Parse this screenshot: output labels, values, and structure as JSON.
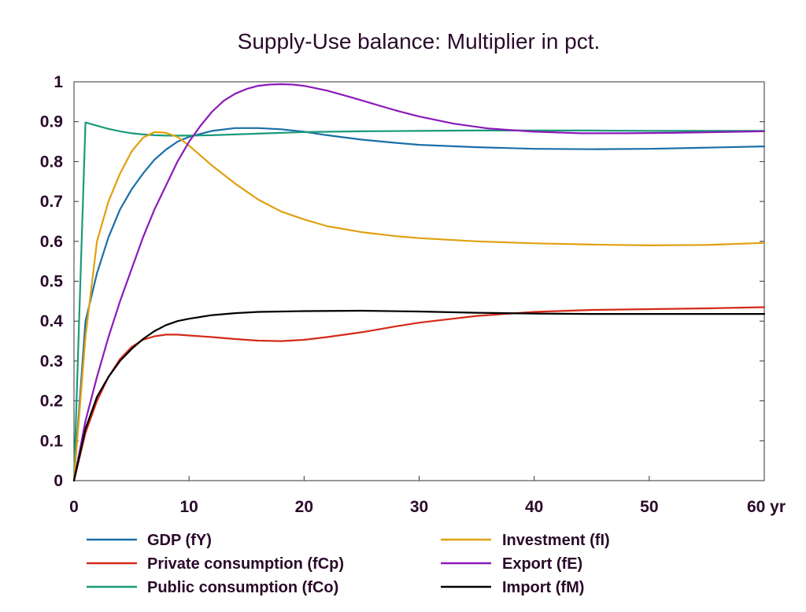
{
  "chart_data": {
    "type": "line",
    "title": "Supply-Use balance: Multiplier in pct.",
    "xlabel": "",
    "ylabel": "",
    "xlim": [
      0,
      60
    ],
    "ylim": [
      0,
      1
    ],
    "x_ticks": [
      {
        "value": 0,
        "label": "0"
      },
      {
        "value": 10,
        "label": "10"
      },
      {
        "value": 20,
        "label": "20"
      },
      {
        "value": 30,
        "label": "30"
      },
      {
        "value": 40,
        "label": "40"
      },
      {
        "value": 50,
        "label": "50"
      },
      {
        "value": 60,
        "label": "60 yr"
      }
    ],
    "y_ticks": [
      {
        "value": 0,
        "label": "0"
      },
      {
        "value": 0.1,
        "label": "0.1"
      },
      {
        "value": 0.2,
        "label": "0.2"
      },
      {
        "value": 0.3,
        "label": "0.3"
      },
      {
        "value": 0.4,
        "label": "0.4"
      },
      {
        "value": 0.5,
        "label": "0.5"
      },
      {
        "value": 0.6,
        "label": "0.6"
      },
      {
        "value": 0.7,
        "label": "0.7"
      },
      {
        "value": 0.8,
        "label": "0.8"
      },
      {
        "value": 0.9,
        "label": "0.9"
      },
      {
        "value": 1,
        "label": "1"
      }
    ],
    "grid": false,
    "legend_position": "bottom",
    "series": [
      {
        "name": "GDP (fY)",
        "color": "#1a6fa8",
        "points": [
          [
            0,
            0
          ],
          [
            1,
            0.4
          ],
          [
            2,
            0.52
          ],
          [
            3,
            0.61
          ],
          [
            4,
            0.68
          ],
          [
            5,
            0.73
          ],
          [
            6,
            0.77
          ],
          [
            7,
            0.805
          ],
          [
            8,
            0.83
          ],
          [
            9,
            0.85
          ],
          [
            10,
            0.862
          ],
          [
            12,
            0.877
          ],
          [
            14,
            0.884
          ],
          [
            16,
            0.884
          ],
          [
            18,
            0.881
          ],
          [
            20,
            0.875
          ],
          [
            22,
            0.866
          ],
          [
            25,
            0.855
          ],
          [
            28,
            0.847
          ],
          [
            30,
            0.842
          ],
          [
            35,
            0.836
          ],
          [
            40,
            0.832
          ],
          [
            45,
            0.831
          ],
          [
            50,
            0.832
          ],
          [
            55,
            0.835
          ],
          [
            60,
            0.838
          ]
        ]
      },
      {
        "name": "Private consumption (fCp)",
        "color": "#d42a1a",
        "points": [
          [
            0,
            0
          ],
          [
            1,
            0.12
          ],
          [
            2,
            0.2
          ],
          [
            3,
            0.26
          ],
          [
            4,
            0.305
          ],
          [
            5,
            0.335
          ],
          [
            6,
            0.353
          ],
          [
            7,
            0.362
          ],
          [
            8,
            0.366
          ],
          [
            9,
            0.366
          ],
          [
            10,
            0.364
          ],
          [
            12,
            0.36
          ],
          [
            14,
            0.355
          ],
          [
            16,
            0.351
          ],
          [
            18,
            0.35
          ],
          [
            20,
            0.353
          ],
          [
            22,
            0.36
          ],
          [
            25,
            0.372
          ],
          [
            28,
            0.387
          ],
          [
            30,
            0.396
          ],
          [
            35,
            0.413
          ],
          [
            40,
            0.423
          ],
          [
            45,
            0.428
          ],
          [
            50,
            0.43
          ],
          [
            55,
            0.432
          ],
          [
            60,
            0.435
          ]
        ]
      },
      {
        "name": "Public consumption (fCo)",
        "color": "#1a9a7a",
        "points": [
          [
            0,
            0
          ],
          [
            1,
            0.898
          ],
          [
            2,
            0.89
          ],
          [
            3,
            0.882
          ],
          [
            4,
            0.876
          ],
          [
            5,
            0.871
          ],
          [
            6,
            0.868
          ],
          [
            7,
            0.866
          ],
          [
            8,
            0.865
          ],
          [
            9,
            0.865
          ],
          [
            10,
            0.865
          ],
          [
            12,
            0.866
          ],
          [
            14,
            0.868
          ],
          [
            16,
            0.87
          ],
          [
            18,
            0.872
          ],
          [
            20,
            0.874
          ],
          [
            25,
            0.876
          ],
          [
            30,
            0.877
          ],
          [
            35,
            0.878
          ],
          [
            40,
            0.878
          ],
          [
            45,
            0.878
          ],
          [
            50,
            0.877
          ],
          [
            55,
            0.877
          ],
          [
            60,
            0.877
          ]
        ]
      },
      {
        "name": "Investment (fI)",
        "color": "#e0a010",
        "points": [
          [
            0,
            0
          ],
          [
            1,
            0.36
          ],
          [
            2,
            0.6
          ],
          [
            3,
            0.7
          ],
          [
            4,
            0.77
          ],
          [
            5,
            0.825
          ],
          [
            6,
            0.86
          ],
          [
            7,
            0.874
          ],
          [
            8,
            0.872
          ],
          [
            9,
            0.862
          ],
          [
            10,
            0.84
          ],
          [
            12,
            0.79
          ],
          [
            14,
            0.745
          ],
          [
            16,
            0.705
          ],
          [
            18,
            0.675
          ],
          [
            20,
            0.655
          ],
          [
            22,
            0.638
          ],
          [
            25,
            0.623
          ],
          [
            28,
            0.613
          ],
          [
            30,
            0.608
          ],
          [
            35,
            0.6
          ],
          [
            40,
            0.595
          ],
          [
            45,
            0.592
          ],
          [
            50,
            0.59
          ],
          [
            55,
            0.591
          ],
          [
            60,
            0.596
          ]
        ]
      },
      {
        "name": "Export (fE)",
        "color": "#8a1ab8",
        "points": [
          [
            0,
            0
          ],
          [
            1,
            0.15
          ],
          [
            2,
            0.26
          ],
          [
            3,
            0.36
          ],
          [
            4,
            0.45
          ],
          [
            5,
            0.53
          ],
          [
            6,
            0.61
          ],
          [
            7,
            0.68
          ],
          [
            8,
            0.74
          ],
          [
            9,
            0.8
          ],
          [
            10,
            0.85
          ],
          [
            11,
            0.89
          ],
          [
            12,
            0.925
          ],
          [
            13,
            0.952
          ],
          [
            14,
            0.97
          ],
          [
            15,
            0.982
          ],
          [
            16,
            0.99
          ],
          [
            17,
            0.993
          ],
          [
            18,
            0.994
          ],
          [
            19,
            0.993
          ],
          [
            20,
            0.99
          ],
          [
            22,
            0.978
          ],
          [
            24,
            0.962
          ],
          [
            26,
            0.945
          ],
          [
            28,
            0.928
          ],
          [
            30,
            0.913
          ],
          [
            33,
            0.895
          ],
          [
            36,
            0.883
          ],
          [
            40,
            0.875
          ],
          [
            44,
            0.871
          ],
          [
            48,
            0.871
          ],
          [
            52,
            0.872
          ],
          [
            56,
            0.874
          ],
          [
            60,
            0.876
          ]
        ]
      },
      {
        "name": "Import (fM)",
        "color": "#000000",
        "points": [
          [
            0,
            0
          ],
          [
            1,
            0.13
          ],
          [
            2,
            0.21
          ],
          [
            3,
            0.26
          ],
          [
            4,
            0.3
          ],
          [
            5,
            0.33
          ],
          [
            6,
            0.355
          ],
          [
            7,
            0.375
          ],
          [
            8,
            0.39
          ],
          [
            9,
            0.4
          ],
          [
            10,
            0.406
          ],
          [
            12,
            0.415
          ],
          [
            14,
            0.42
          ],
          [
            16,
            0.423
          ],
          [
            18,
            0.424
          ],
          [
            20,
            0.425
          ],
          [
            25,
            0.426
          ],
          [
            30,
            0.424
          ],
          [
            35,
            0.421
          ],
          [
            40,
            0.419
          ],
          [
            45,
            0.418
          ],
          [
            50,
            0.418
          ],
          [
            55,
            0.418
          ],
          [
            60,
            0.418
          ]
        ]
      }
    ]
  }
}
